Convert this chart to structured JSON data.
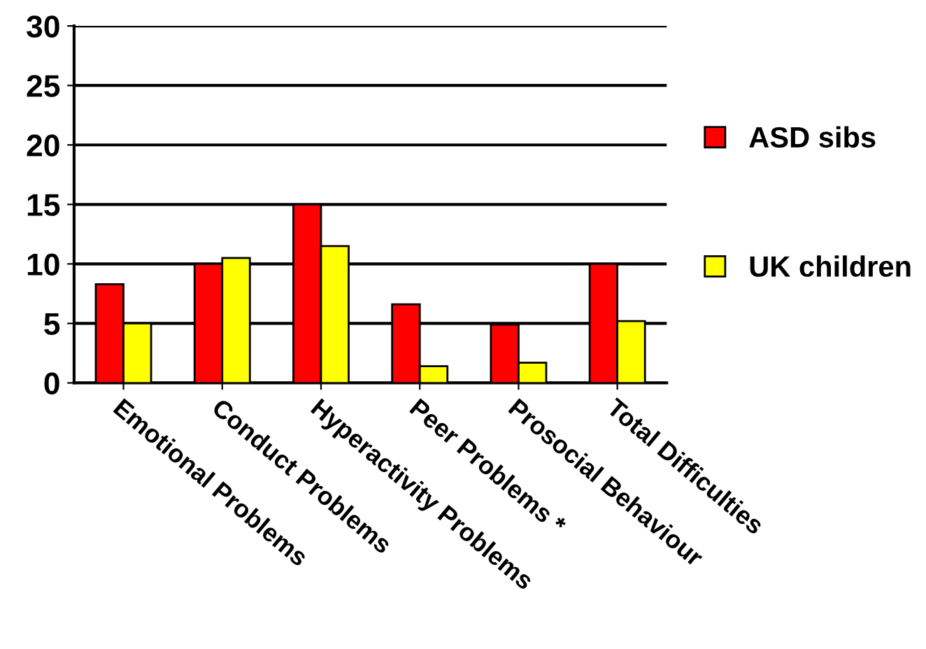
{
  "chart_data": {
    "type": "bar",
    "categories": [
      "Emotional Problems",
      "Conduct Problems",
      "Hyperactivity Problems",
      "Peer Problems *",
      "Prosocial Behaviour",
      "Total Difficulties"
    ],
    "series": [
      {
        "name": "ASD sibs",
        "color": "#ff0000",
        "values": [
          8.3,
          10.0,
          15.0,
          6.6,
          4.9,
          10.0
        ]
      },
      {
        "name": "UK children",
        "color": "#ffff00",
        "values": [
          5.0,
          10.5,
          11.5,
          1.4,
          1.7,
          5.2
        ]
      }
    ],
    "ylim": [
      0,
      30
    ],
    "yticks": [
      0,
      5,
      10,
      15,
      20,
      25,
      30
    ],
    "grid": "y",
    "legend": "right"
  }
}
